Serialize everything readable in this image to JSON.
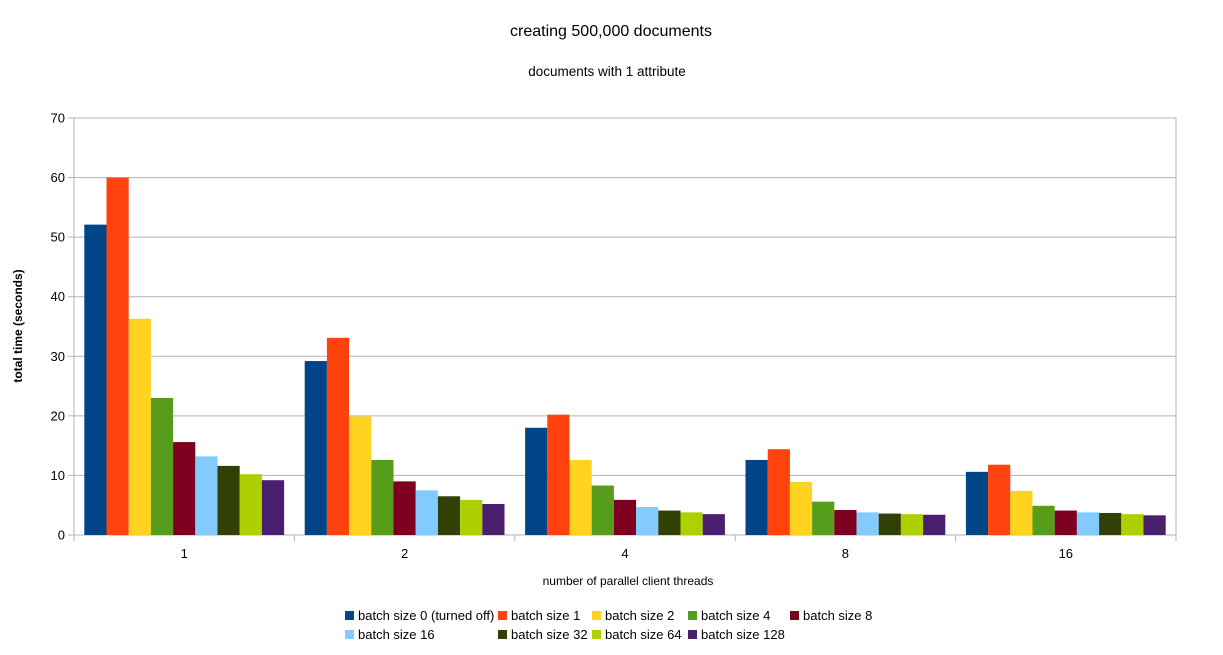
{
  "chart_data": {
    "type": "bar",
    "title": "creating 500,000 documents",
    "subtitle": "documents with 1 attribute",
    "xlabel": "number of parallel client threads",
    "ylabel": "total time (seconds)",
    "ylim": [
      0,
      70
    ],
    "yticks": [
      0,
      10,
      20,
      30,
      40,
      50,
      60,
      70
    ],
    "grid": true,
    "legend_position": "bottom",
    "categories": [
      "1",
      "2",
      "4",
      "8",
      "16"
    ],
    "series": [
      {
        "name": "batch size 0 (turned off)",
        "color": "#004586",
        "values": [
          52.1,
          29.2,
          18.0,
          12.6,
          10.6
        ]
      },
      {
        "name": "batch size 1",
        "color": "#ff420e",
        "values": [
          60.0,
          33.1,
          20.2,
          14.4,
          11.8
        ]
      },
      {
        "name": "batch size 2",
        "color": "#ffd320",
        "values": [
          36.3,
          19.9,
          12.6,
          8.9,
          7.4
        ]
      },
      {
        "name": "batch size 4",
        "color": "#579d1c",
        "values": [
          23.0,
          12.6,
          8.3,
          5.6,
          4.9
        ]
      },
      {
        "name": "batch size 8",
        "color": "#7e0021",
        "values": [
          15.6,
          9.0,
          5.9,
          4.2,
          4.1
        ]
      },
      {
        "name": "batch size 16",
        "color": "#83caff",
        "values": [
          13.2,
          7.5,
          4.7,
          3.8,
          3.8
        ]
      },
      {
        "name": "batch size 32",
        "color": "#314004",
        "values": [
          11.6,
          6.5,
          4.1,
          3.6,
          3.7
        ]
      },
      {
        "name": "batch size 64",
        "color": "#aecf00",
        "values": [
          10.2,
          5.9,
          3.8,
          3.5,
          3.5
        ]
      },
      {
        "name": "batch size 128",
        "color": "#4b1f6f",
        "values": [
          9.2,
          5.2,
          3.5,
          3.4,
          3.3
        ]
      }
    ]
  }
}
